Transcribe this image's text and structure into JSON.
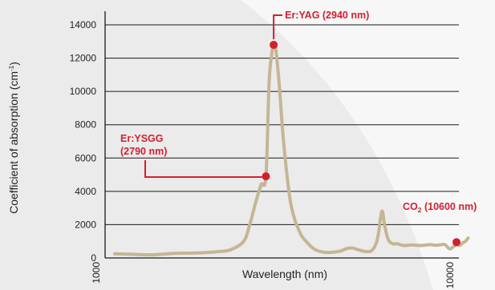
{
  "chart_data": {
    "type": "line",
    "xlabel": "Wavelength (nm)",
    "ylabel": {
      "main": "Coefficient of absorption (cm",
      "sup": "-1",
      "end": ")"
    },
    "xscale": "log",
    "xlim": [
      1000,
      10000
    ],
    "ylim": [
      0,
      14000
    ],
    "x_tick_labels": [
      "1000",
      "10000"
    ],
    "y_ticks": [
      0,
      2000,
      4000,
      6000,
      8000,
      10000,
      12000,
      14000
    ],
    "grid": "horizontal",
    "series": [
      {
        "x": [
          1000,
          1150,
          1300,
          1500,
          1750,
          2000,
          2200,
          2400,
          2500,
          2600,
          2700,
          2790,
          2850,
          2900,
          2940,
          2980,
          3050,
          3150,
          3300,
          3500,
          3700,
          3900,
          4200,
          4600,
          4800,
          5000,
          5200,
          5450,
          5700,
          5900,
          6000,
          6070,
          6150,
          6250,
          6400,
          6600,
          6800,
          7100,
          7500,
          8000,
          8500,
          8800,
          9100,
          9400,
          9700,
          10000,
          10200,
          10400,
          10600,
          10800,
          11000
        ],
        "y": [
          250,
          210,
          190,
          280,
          300,
          370,
          500,
          1000,
          2000,
          3300,
          4400,
          4900,
          10500,
          12200,
          12800,
          12600,
          10500,
          6800,
          3300,
          1600,
          900,
          500,
          330,
          400,
          550,
          600,
          500,
          400,
          420,
          900,
          1600,
          2400,
          2800,
          1900,
          1100,
          850,
          850,
          750,
          780,
          750,
          800,
          760,
          790,
          800,
          550,
          700,
          800,
          750,
          900,
          1000,
          1200
        ]
      }
    ],
    "annotations": [
      {
        "text": "Er:YAG (2940 nm)",
        "x": 2940,
        "y": 12800
      },
      {
        "lines": [
          "Er:YSGG",
          "(2790 nm)"
        ],
        "x": 2790,
        "y": 4900
      },
      {
        "parts": [
          "CO",
          "2",
          " (10600 nm)"
        ],
        "x": 10600,
        "y": 950
      }
    ],
    "colors": {
      "curve": "#c4b694",
      "accent": "#d31f2e",
      "grid": "#1a1a1a",
      "text": "#222222",
      "background": "#ebebeb",
      "arc": "#f7f7f7"
    }
  }
}
